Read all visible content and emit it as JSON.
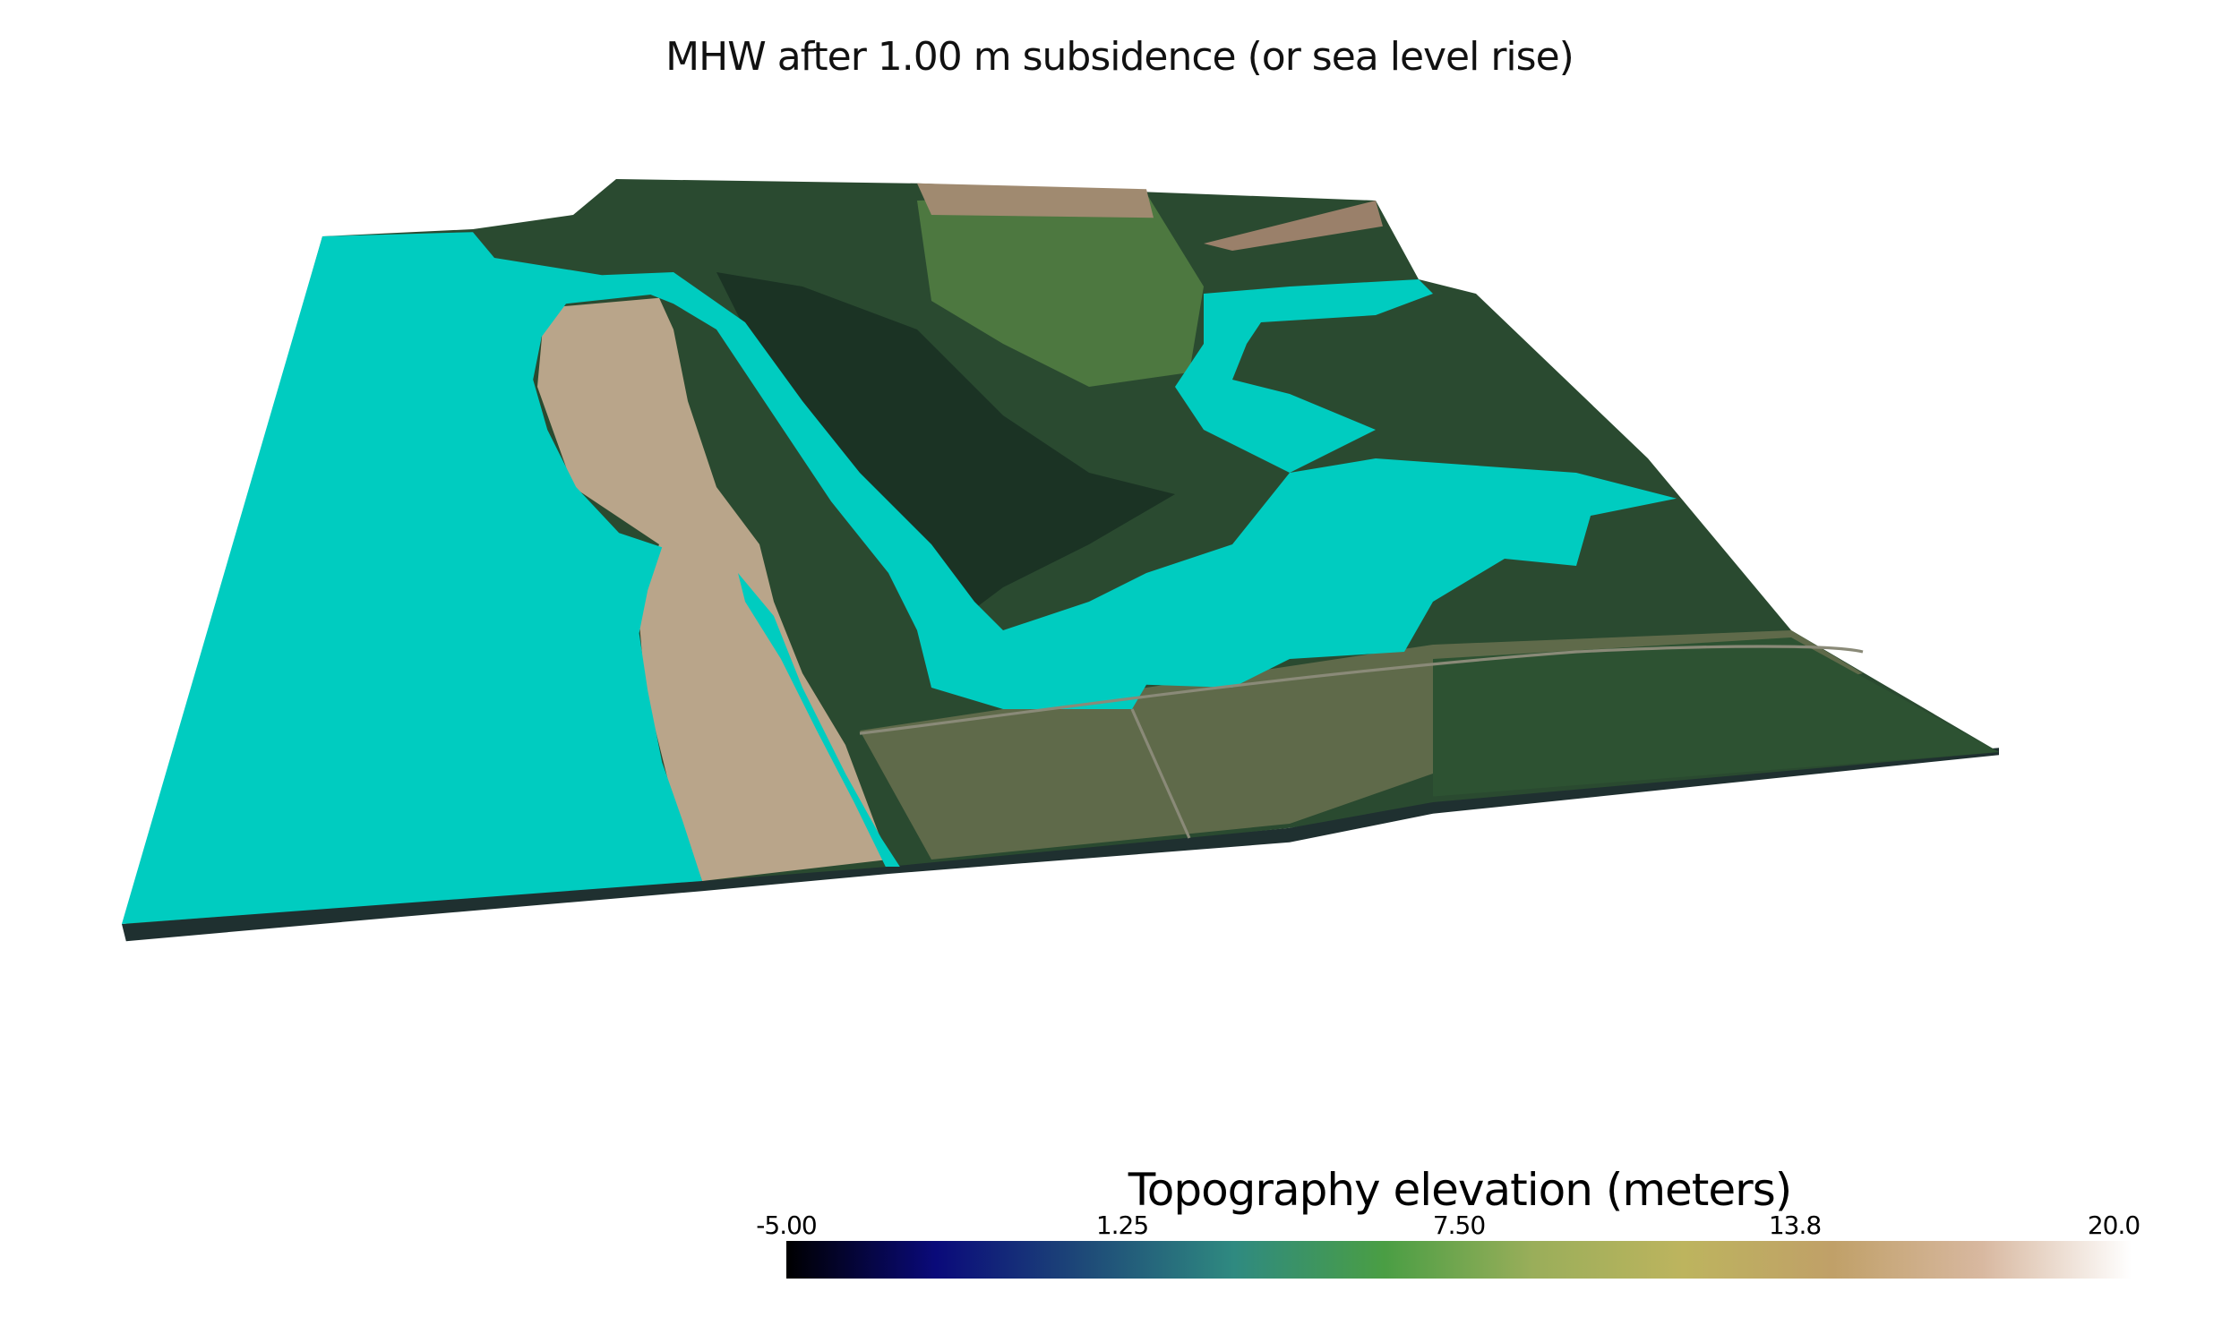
{
  "title": "MHW after 1.00 m subsidence (or sea level rise)",
  "colors": {
    "water": "#00CCC0",
    "forest_dark": "#1f3a28",
    "forest": "#2f5a38",
    "field": "#4f7a45",
    "beach": "#b9a58a",
    "developed": "#5d6a4e"
  },
  "colorbar": {
    "title": "Topography elevation (meters)",
    "range": [
      -5.0,
      20.0
    ],
    "ticks": [
      "-5.00",
      "1.25",
      "7.50",
      "13.8",
      "20.0"
    ],
    "tick_values": [
      -5.0,
      1.25,
      7.5,
      13.75,
      20.0
    ],
    "stops": [
      "#000000",
      "#0a0a7a",
      "#1e4a78",
      "#2f8a80",
      "#4a9e44",
      "#9aae5a",
      "#bdb45e",
      "#c0a068",
      "#d8b8a0",
      "#ffffff"
    ]
  }
}
